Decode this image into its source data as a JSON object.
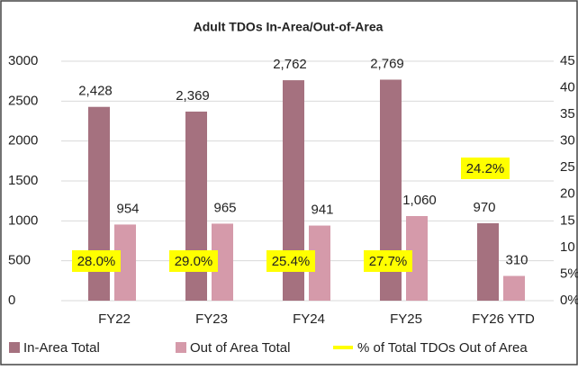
{
  "chart_data": {
    "type": "bar",
    "title": "Adult TDOs In-Area/Out-of-Area",
    "categories": [
      "FY22",
      "FY23",
      "FY24",
      "FY25",
      "FY26 YTD"
    ],
    "series": [
      {
        "name": "In-Area Total",
        "color": "#a5717f",
        "values": [
          2428,
          2369,
          2762,
          2769,
          970
        ],
        "value_labels": [
          "2,428",
          "2,369",
          "2,762",
          "2,769",
          "970"
        ]
      },
      {
        "name": "Out of Area Total",
        "color": "#d59aaa",
        "values": [
          954,
          965,
          941,
          1060,
          310
        ],
        "value_labels": [
          "954",
          "965",
          "941",
          "1,060",
          "310"
        ]
      },
      {
        "name": "% of Total TDOs Out of Area",
        "color": "#ffff00",
        "axis": "y2",
        "values": [
          28.0,
          29.0,
          25.4,
          27.7,
          24.2
        ],
        "value_labels": [
          "28.0%",
          "29.0%",
          "25.4%",
          "27.7%",
          "24.2%"
        ]
      }
    ],
    "ylim": [
      0,
      3000
    ],
    "yticks": [
      0,
      500,
      1000,
      1500,
      2000,
      2500,
      3000
    ],
    "y2lim": [
      0,
      45
    ],
    "y2ticks": [
      {
        "value": 0,
        "label": "0%"
      },
      {
        "value": 5,
        "label": "5%"
      },
      10,
      15,
      20,
      25,
      30,
      35,
      40,
      45
    ],
    "grid": true
  }
}
